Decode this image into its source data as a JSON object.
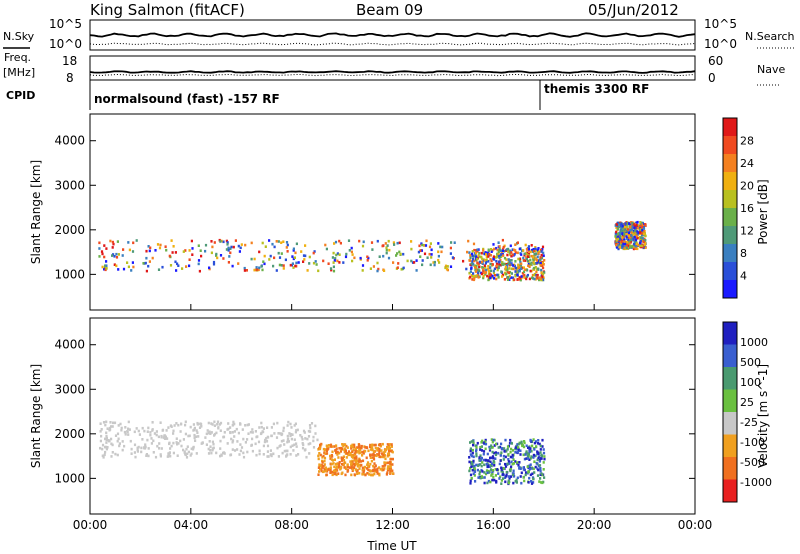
{
  "header": {
    "station": "King Salmon (fitACF)",
    "beam": "Beam 09",
    "date": "05/Jun/2012"
  },
  "panels": {
    "nsky_label": "N.Sky",
    "nsearch_label": "N.Search",
    "freq_label": "Freq.",
    "freq_unit": "[MHz]",
    "nave_label": "Nave",
    "cpid_label": "CPID",
    "nsky_ticks": [
      "10^5",
      "10^0"
    ],
    "nsearch_ticks": [
      "10^5",
      "10^0"
    ],
    "freq_ticks": [
      "18",
      "8"
    ],
    "nave_ticks": [
      "60",
      "0"
    ]
  },
  "cpid": {
    "mode1": "normalsound (fast) -157 RF",
    "mode2": "themis 3300 RF"
  },
  "chart_data": [
    {
      "type": "heatmap",
      "name": "power",
      "ylabel": "Slant Range [km]",
      "xlabel": "",
      "x_ticks": [
        "00:00",
        "04:00",
        "08:00",
        "12:00",
        "16:00",
        "20:00",
        "00:00"
      ],
      "y_ticks": [
        "1000",
        "2000",
        "3000",
        "4000"
      ],
      "ylim": [
        200,
        4600
      ],
      "colorbar": {
        "label": "Power [dB]",
        "ticks": [
          "4",
          "8",
          "12",
          "16",
          "20",
          "24",
          "28"
        ],
        "colors": [
          "#1a1aff",
          "#2a4fd8",
          "#3a7fc0",
          "#4f9a78",
          "#6ab04a",
          "#b8c020",
          "#f0b010",
          "#f48020",
          "#f04a20",
          "#e01818"
        ]
      },
      "features": [
        {
          "t_start": 0.3,
          "t_end": 18.0,
          "r_low": 1100,
          "r_high": 1800,
          "level": "mixed"
        },
        {
          "t_start": 15.0,
          "t_end": 18.0,
          "r_low": 900,
          "r_high": 1600,
          "level": "mixed"
        },
        {
          "t_start": 20.8,
          "t_end": 22.0,
          "r_low": 1600,
          "r_high": 2200,
          "level": "mixed"
        }
      ]
    },
    {
      "type": "heatmap",
      "name": "velocity",
      "ylabel": "Slant Range [km]",
      "xlabel": "Time UT",
      "x_ticks": [
        "00:00",
        "04:00",
        "08:00",
        "12:00",
        "16:00",
        "20:00",
        "00:00"
      ],
      "y_ticks": [
        "1000",
        "2000",
        "3000",
        "4000"
      ],
      "ylim": [
        200,
        4600
      ],
      "colorbar": {
        "label": "Velocity [m s^-1]",
        "ticks": [
          "1000",
          "500",
          "100",
          "25",
          "-25",
          "-100",
          "-500",
          "-1000"
        ],
        "colors": [
          "#2020c0",
          "#3a5fd0",
          "#4a9a70",
          "#6ac040",
          "#c8c8c8",
          "#f0a020",
          "#f07020",
          "#e82020"
        ]
      },
      "features": [
        {
          "t_start": 0.3,
          "t_end": 9.0,
          "r_low": 1500,
          "r_high": 2300,
          "level": "ground-scatter"
        },
        {
          "t_start": 9.0,
          "t_end": 12.0,
          "r_low": 1100,
          "r_high": 1800,
          "level": "negative"
        },
        {
          "t_start": 15.0,
          "t_end": 18.0,
          "r_low": 900,
          "r_high": 1900,
          "level": "positive"
        }
      ]
    }
  ]
}
